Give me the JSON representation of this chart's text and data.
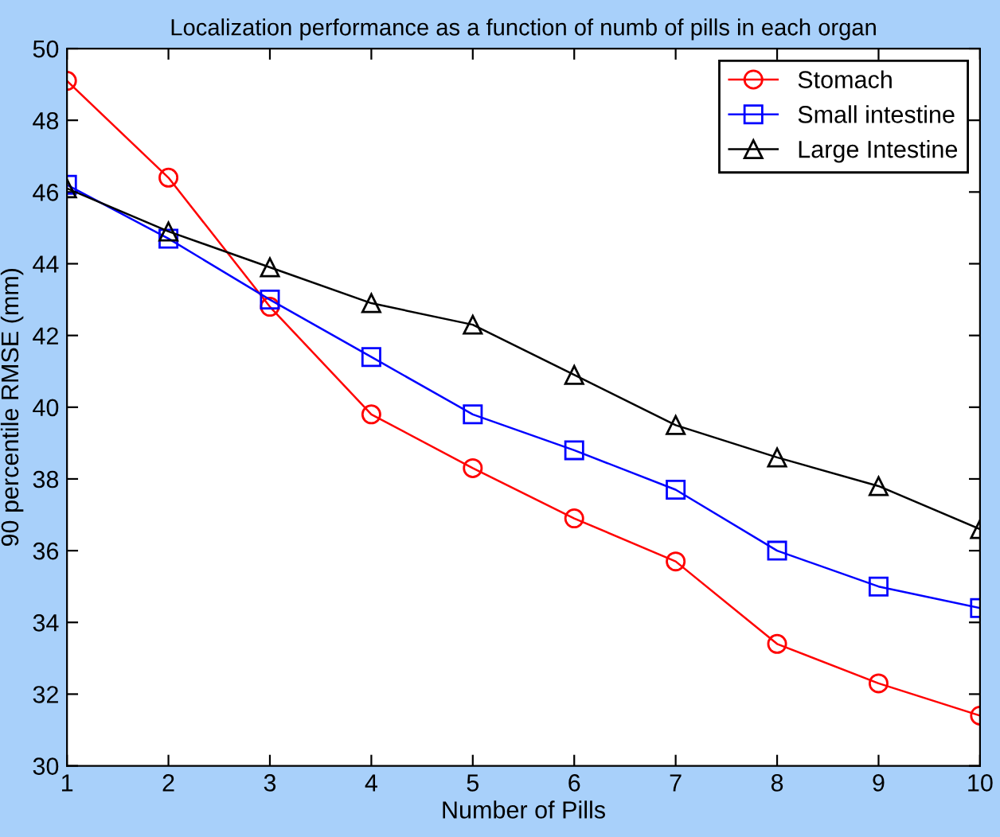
{
  "chart_data": {
    "type": "line",
    "title": "Localization performance as a function of numb of pills in each organ",
    "xlabel": "Number of Pills",
    "ylabel": "90 percentile RMSE (mm)",
    "x": [
      1,
      2,
      3,
      4,
      5,
      6,
      7,
      8,
      9,
      10
    ],
    "series": [
      {
        "name": "Stomach",
        "color": "#ff0000",
        "marker": "circle",
        "values": [
          49.1,
          46.4,
          42.8,
          39.8,
          38.3,
          36.9,
          35.7,
          33.4,
          32.3,
          31.4
        ]
      },
      {
        "name": "Small intestine",
        "color": "#0000ff",
        "marker": "square",
        "values": [
          46.2,
          44.7,
          43.0,
          41.4,
          39.8,
          38.8,
          37.7,
          36.0,
          35.0,
          34.4
        ]
      },
      {
        "name": "Large Intestine",
        "color": "#000000",
        "marker": "triangle",
        "values": [
          46.1,
          44.9,
          43.9,
          42.9,
          42.3,
          40.9,
          39.5,
          38.6,
          37.8,
          36.6
        ]
      }
    ],
    "xlim": [
      1,
      10
    ],
    "xticks": [
      1,
      2,
      3,
      4,
      5,
      6,
      7,
      8,
      9,
      10
    ],
    "ylim": [
      30,
      50
    ],
    "yticks": [
      30,
      32,
      34,
      36,
      38,
      40,
      42,
      44,
      46,
      48,
      50
    ],
    "grid": false,
    "legend": "top right",
    "line_style": "solid"
  }
}
